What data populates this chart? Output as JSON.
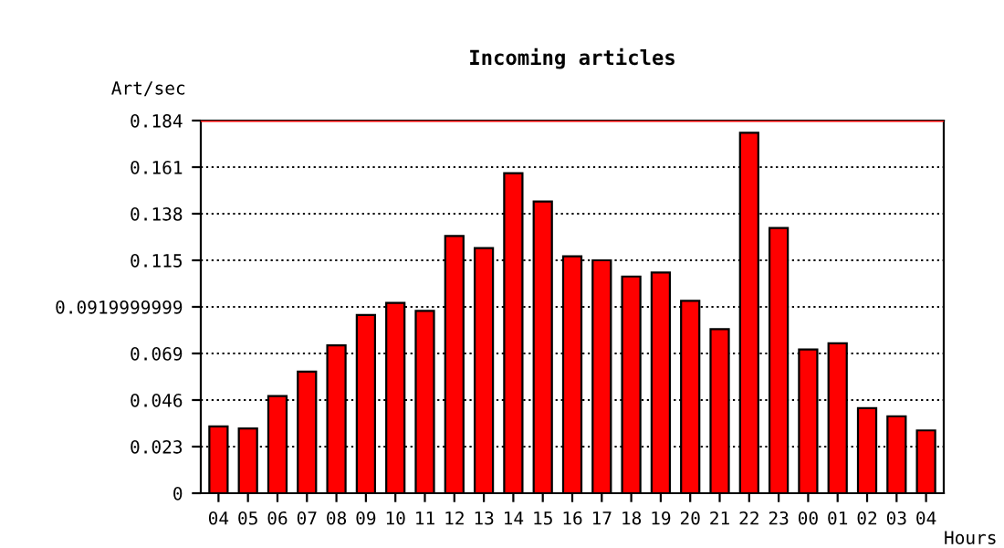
{
  "chart_data": {
    "type": "bar",
    "title": "Incoming articles",
    "xlabel": "Hours",
    "ylabel": "Art/sec",
    "categories": [
      "04",
      "05",
      "06",
      "07",
      "08",
      "09",
      "10",
      "11",
      "12",
      "13",
      "14",
      "15",
      "16",
      "17",
      "18",
      "19",
      "20",
      "21",
      "22",
      "23",
      "00",
      "01",
      "02",
      "03",
      "04"
    ],
    "values": [
      0.033,
      0.032,
      0.048,
      0.06,
      0.073,
      0.088,
      0.094,
      0.09,
      0.127,
      0.121,
      0.158,
      0.144,
      0.117,
      0.115,
      0.107,
      0.109,
      0.095,
      0.081,
      0.178,
      0.131,
      0.071,
      0.074,
      0.042,
      0.038,
      0.031
    ],
    "color": "#ff0000",
    "ylim": [
      0,
      0.184
    ],
    "yticks": [
      0,
      0.023,
      0.046,
      0.069,
      0.0919999999,
      0.115,
      0.138,
      0.161,
      0.184
    ],
    "ref_lines": [
      {
        "axis": "y",
        "value": 0.184,
        "color": "#ff0000",
        "line_style": "solid"
      }
    ],
    "grid": "y",
    "line_style": "dotted"
  }
}
